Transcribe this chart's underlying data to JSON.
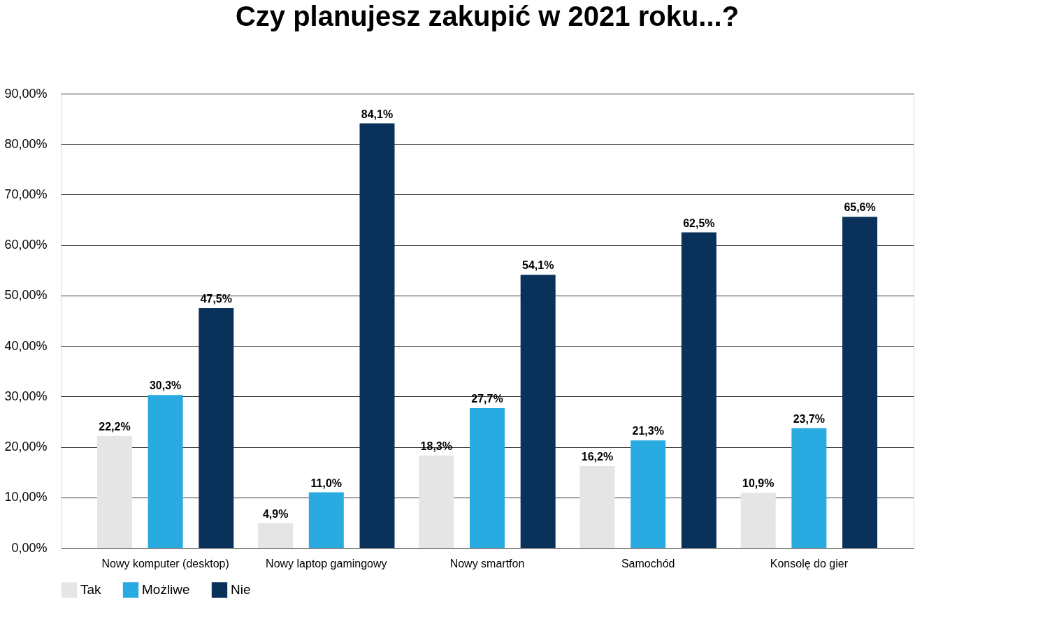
{
  "chart_data": {
    "type": "bar",
    "title": "Czy planujesz zakupić w 2021 roku...?",
    "categories": [
      "Nowy komputer (desktop)",
      "Nowy laptop gamingowy",
      "Nowy smartfon",
      "Samochód",
      "Konsolę do gier"
    ],
    "series": [
      {
        "name": "Tak",
        "color": "#e5e5e5",
        "values": [
          22.2,
          4.9,
          18.3,
          16.2,
          10.9
        ],
        "value_labels": [
          "22,2%",
          "4,9%",
          "18,3%",
          "16,2%",
          "10,9%"
        ]
      },
      {
        "name": "Możliwe",
        "color": "#29abe2",
        "values": [
          30.3,
          11.0,
          27.7,
          21.3,
          23.7
        ],
        "value_labels": [
          "30,3%",
          "11,0%",
          "27,7%",
          "21,3%",
          "23,7%"
        ]
      },
      {
        "name": "Nie",
        "color": "#0a3159",
        "values": [
          47.5,
          84.1,
          54.1,
          62.5,
          65.6
        ],
        "value_labels": [
          "47,5%",
          "84,1%",
          "54,1%",
          "62,5%",
          "65,6%"
        ]
      }
    ],
    "ylim": [
      0,
      90
    ],
    "yticks": [
      {
        "value": 0,
        "label": "0,00%"
      },
      {
        "value": 10,
        "label": "10,00%"
      },
      {
        "value": 20,
        "label": "20,00%"
      },
      {
        "value": 30,
        "label": "30,00%"
      },
      {
        "value": 40,
        "label": "40,00%"
      },
      {
        "value": 50,
        "label": "50,00%"
      },
      {
        "value": 60,
        "label": "60,00%"
      },
      {
        "value": 70,
        "label": "70,00%"
      },
      {
        "value": 80,
        "label": "80,00%"
      },
      {
        "value": 90,
        "label": "90,00%"
      }
    ],
    "grid": "y",
    "legend": "bottom"
  }
}
